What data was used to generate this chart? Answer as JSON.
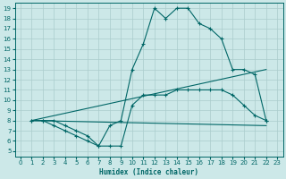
{
  "xlabel": "Humidex (Indice chaleur)",
  "background_color": "#cce8e8",
  "grid_color": "#aacccc",
  "line_color": "#006666",
  "xlim": [
    -0.5,
    23.5
  ],
  "ylim": [
    4.5,
    19.5
  ],
  "xticks": [
    0,
    1,
    2,
    3,
    4,
    5,
    6,
    7,
    8,
    9,
    10,
    11,
    12,
    13,
    14,
    15,
    16,
    17,
    18,
    19,
    20,
    21,
    22,
    23
  ],
  "yticks": [
    5,
    6,
    7,
    8,
    9,
    10,
    11,
    12,
    13,
    14,
    15,
    16,
    17,
    18,
    19
  ],
  "line1_x": [
    1,
    2,
    3,
    4,
    5,
    6,
    7,
    8,
    9,
    10,
    11,
    12,
    13,
    14,
    15,
    16,
    17,
    18,
    19,
    20,
    21,
    22
  ],
  "line1_y": [
    8,
    8,
    7.5,
    7,
    6.5,
    6,
    5.5,
    7.5,
    8,
    13,
    15.5,
    19,
    18,
    19,
    19,
    17.5,
    17,
    16,
    13,
    13,
    12.5,
    8
  ],
  "line2_x": [
    1,
    2,
    3,
    4,
    5,
    6,
    7,
    8,
    9,
    10,
    11,
    12,
    13,
    14,
    15,
    16,
    17,
    18,
    19,
    20,
    21,
    22
  ],
  "line2_y": [
    8,
    8,
    8,
    7.5,
    7,
    6.5,
    5.5,
    5.5,
    5.5,
    9.5,
    10.5,
    10.5,
    10.5,
    11,
    11,
    11,
    11,
    11,
    10.5,
    9.5,
    8.5,
    8
  ],
  "line3_x": [
    1,
    22
  ],
  "line3_y": [
    8,
    13
  ],
  "line4_x": [
    1,
    22
  ],
  "line4_y": [
    8,
    7.5
  ]
}
